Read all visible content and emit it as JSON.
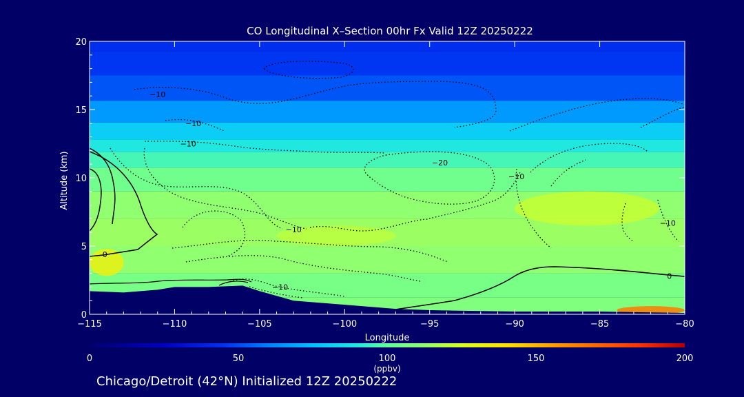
{
  "chart_data": {
    "type": "heatmap",
    "title": "CO Longitudinal X–Section 00hr  Fx Valid 12Z 20250222",
    "xlabel": "Longitude",
    "ylabel": "Altitude (km)",
    "xlim": [
      -115,
      -80
    ],
    "ylim": [
      0,
      20
    ],
    "x_ticks": [
      -115,
      -110,
      -105,
      -100,
      -95,
      -90,
      -85,
      -80
    ],
    "x_tick_labels": [
      "−115",
      "−110",
      "−105",
      "−100",
      "−95",
      "−90",
      "−85",
      "−80"
    ],
    "y_ticks": [
      0,
      5,
      10,
      15,
      20
    ],
    "y_tick_labels": [
      "0",
      "5",
      "10",
      "15",
      "20"
    ],
    "colorbar": {
      "min": 0,
      "max": 200,
      "ticks": [
        0,
        50,
        100,
        150,
        200
      ],
      "tick_labels": [
        "0",
        "50",
        "100",
        "150",
        "200"
      ],
      "label": "(ppbv)"
    },
    "shading": [
      {
        "altitude_km": 0.5,
        "value": 108
      },
      {
        "altitude_km": 2.0,
        "value": 106
      },
      {
        "altitude_km": 4.0,
        "value": 112
      },
      {
        "altitude_km": 6.0,
        "value": 114
      },
      {
        "altitude_km": 8.0,
        "value": 112
      },
      {
        "altitude_km": 10.0,
        "value": 104
      },
      {
        "altitude_km": 11.5,
        "value": 96
      },
      {
        "altitude_km": 12.3,
        "value": 90
      },
      {
        "altitude_km": 13.3,
        "value": 80
      },
      {
        "altitude_km": 14.8,
        "value": 66
      },
      {
        "altitude_km": 16.5,
        "value": 52
      },
      {
        "altitude_km": 18.5,
        "value": 46
      },
      {
        "altitude_km": 20.0,
        "value": 44
      }
    ],
    "high_value_patches": [
      {
        "lon": [
          -115,
          -113
        ],
        "alt": [
          2.8,
          4.8
        ],
        "value": 132
      },
      {
        "lon": [
          -90,
          -81.5
        ],
        "alt": [
          6.5,
          9.0
        ],
        "value": 122
      },
      {
        "lon": [
          -104,
          -97
        ],
        "alt": [
          5.0,
          6.5
        ],
        "value": 120
      },
      {
        "lon": [
          -84,
          -80
        ],
        "alt": [
          0,
          0.6
        ],
        "value": 165
      }
    ],
    "terrain": [
      {
        "lon": -115,
        "alt": 1.7
      },
      {
        "lon": -113,
        "alt": 1.6
      },
      {
        "lon": -111,
        "alt": 1.8
      },
      {
        "lon": -110,
        "alt": 2.0
      },
      {
        "lon": -108,
        "alt": 2.0
      },
      {
        "lon": -106,
        "alt": 2.1
      },
      {
        "lon": -105,
        "alt": 1.7
      },
      {
        "lon": -103,
        "alt": 1.0
      },
      {
        "lon": -100,
        "alt": 0.7
      },
      {
        "lon": -97,
        "alt": 0.4
      },
      {
        "lon": -95,
        "alt": 0.3
      },
      {
        "lon": -90,
        "alt": 0.2
      },
      {
        "lon": -85,
        "alt": 0.2
      },
      {
        "lon": -80,
        "alt": 0.1
      }
    ],
    "contour_labels": [
      {
        "text": "−10",
        "lon": -111.0,
        "alt": 16.1
      },
      {
        "text": "−10",
        "lon": -108.9,
        "alt": 14.0
      },
      {
        "text": "−10",
        "lon": -109.2,
        "alt": 12.5
      },
      {
        "text": "−20",
        "lon": -94.4,
        "alt": 11.1
      },
      {
        "text": "−10",
        "lon": -89.9,
        "alt": 10.1
      },
      {
        "text": "−10",
        "lon": -103.0,
        "alt": 6.2
      },
      {
        "text": "−10",
        "lon": -81.0,
        "alt": 6.7
      },
      {
        "text": "−10",
        "lon": -103.8,
        "alt": 2.0
      },
      {
        "text": "0",
        "lon": -114.1,
        "alt": 4.4
      },
      {
        "text": "0",
        "lon": -80.9,
        "alt": 2.8
      }
    ]
  },
  "footer": "Chicago/Detroit (42°N) Initialized 12Z 20250222"
}
